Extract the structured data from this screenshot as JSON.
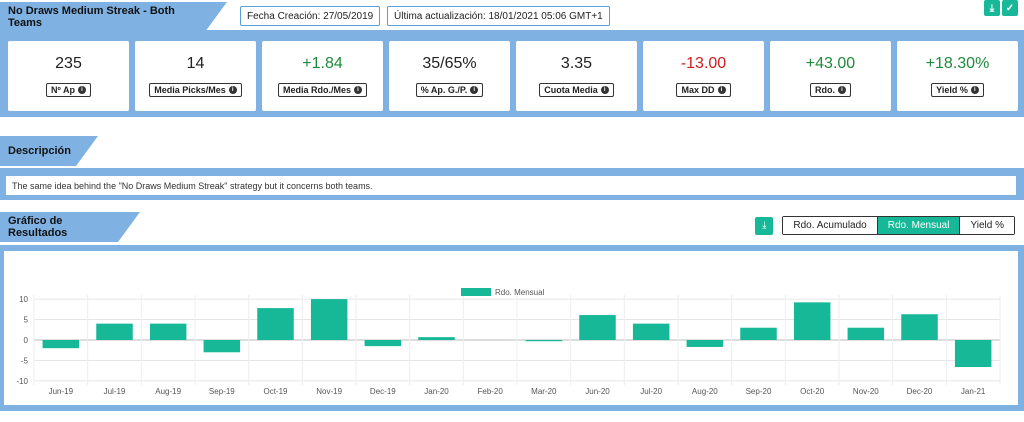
{
  "header": {
    "strategy_title": "No Draws Medium Streak - Both Teams",
    "created": "Fecha Creación: 27/05/2019",
    "updated": "Última actualización: 18/01/2021 05:06 GMT+1"
  },
  "stats": [
    {
      "value": "235",
      "label": "Nº Ap",
      "tone": "neutral"
    },
    {
      "value": "14",
      "label": "Media Picks/Mes",
      "tone": "neutral"
    },
    {
      "value": "+1.84",
      "label": "Media Rdo./Mes",
      "tone": "pos"
    },
    {
      "value": "35/65%",
      "label": "% Ap. G./P.",
      "tone": "neutral"
    },
    {
      "value": "3.35",
      "label": "Cuota Media",
      "tone": "neutral"
    },
    {
      "value": "-13.00",
      "label": "Max DD",
      "tone": "neg"
    },
    {
      "value": "+43.00",
      "label": "Rdo.",
      "tone": "pos"
    },
    {
      "value": "+18.30%",
      "label": "Yield %",
      "tone": "pos"
    }
  ],
  "description": {
    "tab_label": "Descripción",
    "text": "The same idea behind the \"No Draws Medium Streak\" strategy but it concerns both teams."
  },
  "chart_section": {
    "tab_label": "Gráfico de Resultados",
    "buttons": [
      "Rdo. Acumulado",
      "Rdo. Mensual",
      "Yield %"
    ],
    "active_button": "Rdo. Mensual"
  },
  "colors": {
    "accent": "#17b897",
    "band": "#7fb2e3",
    "positive": "#1e8a3c",
    "negative": "#d01c1c"
  },
  "chart_data": {
    "type": "bar",
    "categories": [
      "Jun-19",
      "Jul-19",
      "Aug-19",
      "Sep-19",
      "Oct-19",
      "Nov-19",
      "Dec-19",
      "Jan-20",
      "Feb-20",
      "Mar-20",
      "Jun-20",
      "Jul-20",
      "Aug-20",
      "Sep-20",
      "Oct-20",
      "Nov-20",
      "Dec-20",
      "Jan-21"
    ],
    "series": [
      {
        "name": "Rdo. Mensual",
        "values": [
          -2,
          4,
          4,
          -3,
          7.8,
          10,
          -1.5,
          0.7,
          0,
          -0.3,
          6.1,
          4,
          -1.7,
          3,
          9.2,
          3,
          6.3,
          -6.6
        ]
      }
    ],
    "yticks": [
      10,
      5,
      0,
      -5,
      -10
    ],
    "ylim": [
      -11,
      11
    ],
    "legend_position": "top-center",
    "grid": true
  }
}
